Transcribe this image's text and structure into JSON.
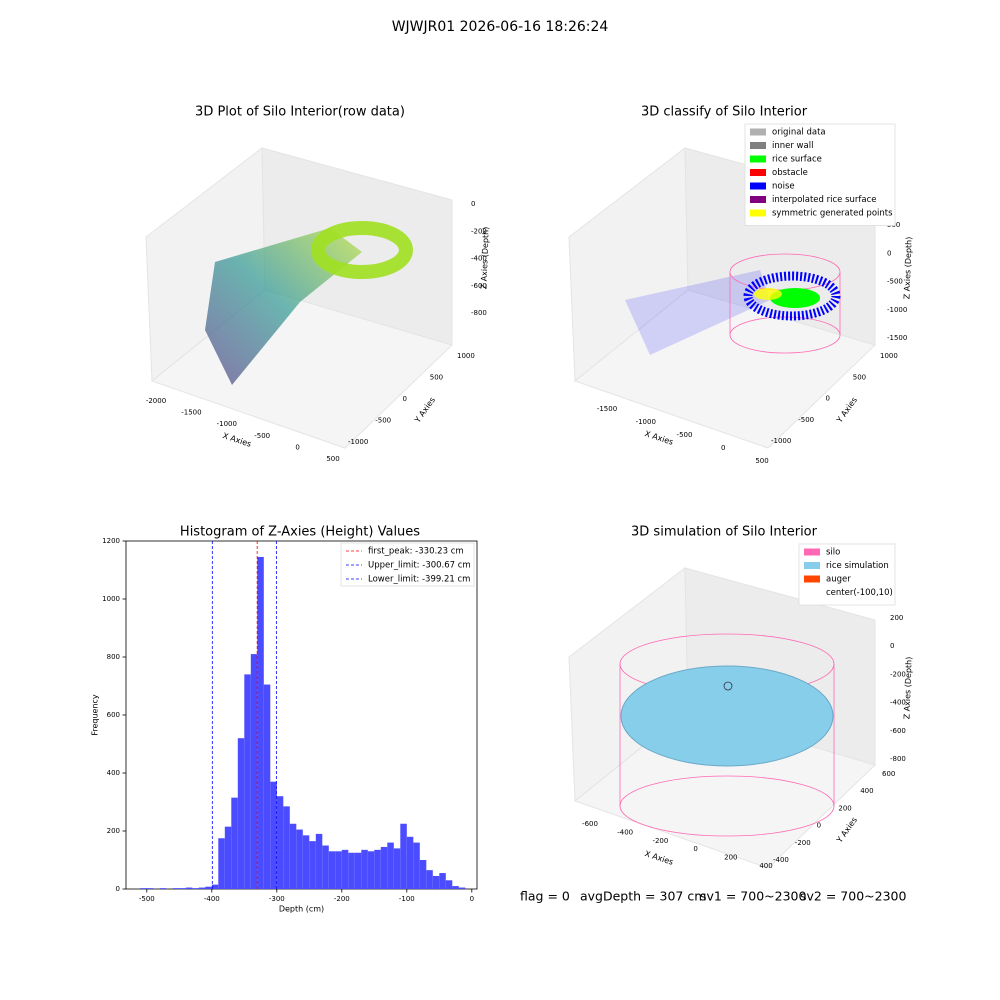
{
  "suptitle": "WJWJR01 2026-06-16 18:26:24",
  "chart_data": [
    {
      "type": "scatter3d",
      "title": "3D Plot of Silo Interior(row data)",
      "xlabel": "X Axies",
      "ylabel": "Y Axies",
      "zlabel": "Z Axies (Depth)",
      "xlim": [
        -2000,
        500
      ],
      "xticks": [
        -2000,
        -1500,
        -1000,
        -500,
        0,
        500
      ],
      "ylim": [
        -1000,
        1000
      ],
      "yticks": [
        -1000,
        -500,
        0,
        500,
        1000
      ],
      "zlim": [
        -800,
        0
      ],
      "zticks": [
        0,
        -200,
        -400,
        -600,
        -800
      ]
    },
    {
      "type": "scatter3d",
      "title": "3D classify of Silo Interior",
      "xlabel": "X Axies",
      "ylabel": "Y Axies",
      "zlabel": "Z Axies (Depth)",
      "xlim": [
        -1500,
        500
      ],
      "xticks": [
        -1500,
        -1000,
        -500,
        0,
        500
      ],
      "ylim": [
        -1000,
        1000
      ],
      "yticks": [
        -1000,
        -500,
        0,
        500,
        1000
      ],
      "zlim": [
        -1500,
        500
      ],
      "zticks": [
        500,
        0,
        -500,
        -1000,
        -1500
      ],
      "legend": "upper right",
      "series": [
        {
          "name": "original data",
          "color": "#b0b0b0"
        },
        {
          "name": "inner wall",
          "color": "#808080"
        },
        {
          "name": "rice surface",
          "color": "#00ff00"
        },
        {
          "name": "obstacle",
          "color": "#ff0000"
        },
        {
          "name": "noise",
          "color": "#0000ff"
        },
        {
          "name": "interpolated rice surface",
          "color": "#800080"
        },
        {
          "name": "symmetric generated points",
          "color": "#ffff00"
        }
      ]
    },
    {
      "type": "histogram",
      "title": "Histogram of Z-Axies (Height) Values",
      "xlabel": "Depth (cm)",
      "ylabel": "Frequency",
      "color": "#4b4bff",
      "xlim": [
        -532,
        8
      ],
      "xticks": [
        -500,
        -400,
        -300,
        -200,
        -100,
        0
      ],
      "ylim": [
        0,
        1200
      ],
      "yticks": [
        0,
        200,
        400,
        600,
        800,
        1000,
        1200
      ],
      "bins": [
        -510,
        -500,
        -490,
        -480,
        -470,
        -460,
        -450,
        -440,
        -430,
        -420,
        -410,
        -400,
        -390,
        -380,
        -370,
        -360,
        -350,
        -340,
        -330,
        -320,
        -310,
        -300,
        -290,
        -280,
        -270,
        -260,
        -250,
        -240,
        -230,
        -220,
        -210,
        -200,
        -190,
        -180,
        -170,
        -160,
        -150,
        -140,
        -130,
        -120,
        -110,
        -100,
        -90,
        -80,
        -70,
        -60,
        -50,
        -40,
        -30,
        -20,
        -10
      ],
      "counts": [
        3,
        3,
        0,
        3,
        0,
        3,
        3,
        5,
        3,
        5,
        8,
        15,
        175,
        215,
        315,
        520,
        740,
        810,
        1145,
        705,
        370,
        320,
        285,
        225,
        205,
        185,
        165,
        190,
        150,
        130,
        130,
        135,
        125,
        125,
        135,
        130,
        135,
        145,
        160,
        140,
        225,
        180,
        160,
        100,
        65,
        45,
        55,
        30,
        10,
        5
      ],
      "legend": "upper right",
      "vlines": [
        {
          "name": "first_peak: -330.23 cm",
          "value": -330.23,
          "color": "#ff0000"
        },
        {
          "name": "Upper_limit: -300.67 cm",
          "value": -300.67,
          "color": "#0000ff"
        },
        {
          "name": "Lower_limit: -399.21 cm",
          "value": -399.21,
          "color": "#0000ff"
        }
      ]
    },
    {
      "type": "scatter3d",
      "title": "3D simulation of Silo Interior",
      "xlabel": "X Axies",
      "ylabel": "Y Axies",
      "zlabel": "Z Axies (Depth)",
      "xlim": [
        -600,
        400
      ],
      "xticks": [
        -600,
        -400,
        -200,
        0,
        200,
        400
      ],
      "ylim": [
        -400,
        600
      ],
      "yticks": [
        -400,
        -200,
        0,
        200,
        400,
        600
      ],
      "zlim": [
        -800,
        200
      ],
      "zticks": [
        200,
        0,
        -200,
        -400,
        -600,
        -800
      ],
      "legend": "upper right",
      "series": [
        {
          "name": "silo",
          "color": "#ff69b4"
        },
        {
          "name": "rice simulation",
          "color": "#87ceeb"
        },
        {
          "name": "auger",
          "color": "#ff4500"
        },
        {
          "name": "center(-100,10)"
        }
      ]
    }
  ],
  "footer": [
    "flag = 0",
    "avgDepth = 307 cm",
    "sv1 = 700~2300",
    "sv2 = 700~2300"
  ]
}
